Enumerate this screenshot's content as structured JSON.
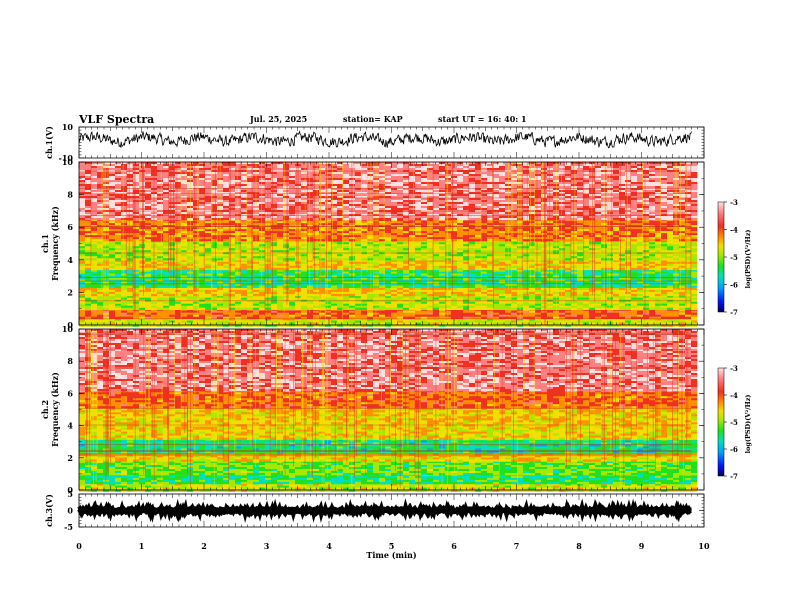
{
  "header": {
    "title": "VLF Spectra",
    "date": "Jul. 25, 2025",
    "station": "station= KAP",
    "start": "start UT =  16: 40: 1"
  },
  "colors": {
    "background": "#ffffff",
    "axis": "#000000",
    "waveform": "#000000",
    "colormap": [
      "#000060",
      "#0018ff",
      "#00a0ff",
      "#00e0c0",
      "#20e020",
      "#a8e800",
      "#f0e000",
      "#ff9000",
      "#f03020",
      "#ff8080",
      "#ffe0e0"
    ]
  },
  "chart_data": [
    {
      "id": "ch1-waveform",
      "type": "line",
      "ylabel": "ch.1(V)",
      "ylim": [
        -10,
        10
      ],
      "yticks": [
        "10",
        "-10"
      ],
      "xlim": [
        0,
        10
      ],
      "waveform_mean": 2,
      "waveform_amplitude": 5,
      "data_extent_min": 9.8
    },
    {
      "id": "ch1-spectrogram",
      "type": "heatmap",
      "ylabel": "ch.1\nFrequency (kHz)",
      "ylim": [
        0,
        10
      ],
      "yticks": [
        "0",
        "2",
        "4",
        "6",
        "8",
        "10"
      ],
      "xlim": [
        0,
        10
      ],
      "data_extent_min": 9.8,
      "colorbar": {
        "label": "log(PSD)(V²/Hz)",
        "range": [
          -7,
          -3
        ],
        "ticks": [
          "-3",
          "-4",
          "-5",
          "-6",
          "-7"
        ]
      },
      "bands": [
        {
          "from_khz": 0,
          "to_khz": 0.4,
          "log_psd": -4.8
        },
        {
          "from_khz": 0.4,
          "to_khz": 1.0,
          "log_psd": -4.0
        },
        {
          "from_khz": 1.0,
          "to_khz": 1.8,
          "log_psd": -4.9
        },
        {
          "from_khz": 1.8,
          "to_khz": 2.4,
          "log_psd": -4.5
        },
        {
          "from_khz": 2.4,
          "to_khz": 3.4,
          "log_psd": -5.5
        },
        {
          "from_khz": 3.4,
          "to_khz": 4.0,
          "log_psd": -4.5
        },
        {
          "from_khz": 4.0,
          "to_khz": 5.2,
          "log_psd": -4.9
        },
        {
          "from_khz": 5.2,
          "to_khz": 6.5,
          "log_psd": -4.1
        },
        {
          "from_khz": 6.5,
          "to_khz": 10.0,
          "log_psd": -3.4
        }
      ]
    },
    {
      "id": "ch2-spectrogram",
      "type": "heatmap",
      "ylabel": "ch.2\nFrequency (kHz)",
      "ylim": [
        0,
        10
      ],
      "yticks": [
        "0",
        "2",
        "4",
        "6",
        "8",
        "10"
      ],
      "xlim": [
        0,
        10
      ],
      "data_extent_min": 9.8,
      "colorbar": {
        "label": "log(PSD)(V²/Hz)",
        "range": [
          -7,
          -3
        ],
        "ticks": [
          "-3",
          "-4",
          "-5",
          "-6",
          "-7"
        ]
      },
      "bands": [
        {
          "from_khz": 0,
          "to_khz": 0.4,
          "log_psd": -4.8
        },
        {
          "from_khz": 0.4,
          "to_khz": 1.0,
          "log_psd": -5.5
        },
        {
          "from_khz": 1.0,
          "to_khz": 1.8,
          "log_psd": -5.2
        },
        {
          "from_khz": 1.8,
          "to_khz": 2.4,
          "log_psd": -4.6
        },
        {
          "from_khz": 2.4,
          "to_khz": 3.2,
          "log_psd": -5.6
        },
        {
          "from_khz": 3.2,
          "to_khz": 4.0,
          "log_psd": -4.6
        },
        {
          "from_khz": 4.0,
          "to_khz": 5.2,
          "log_psd": -4.5
        },
        {
          "from_khz": 5.2,
          "to_khz": 6.2,
          "log_psd": -4.0
        },
        {
          "from_khz": 6.2,
          "to_khz": 10.0,
          "log_psd": -3.4
        }
      ]
    },
    {
      "id": "ch3-waveform",
      "type": "line",
      "ylabel": "ch.3(V)",
      "ylim": [
        -5,
        5
      ],
      "yticks": [
        "5",
        "0",
        "-5"
      ],
      "xlim": [
        0,
        10
      ],
      "waveform_mean": 0,
      "waveform_amplitude": 0.5,
      "data_extent_min": 9.8,
      "xlabel": "Time (min)",
      "xticks": [
        "0",
        "1",
        "2",
        "3",
        "4",
        "5",
        "6",
        "7",
        "8",
        "9",
        "10"
      ]
    }
  ]
}
